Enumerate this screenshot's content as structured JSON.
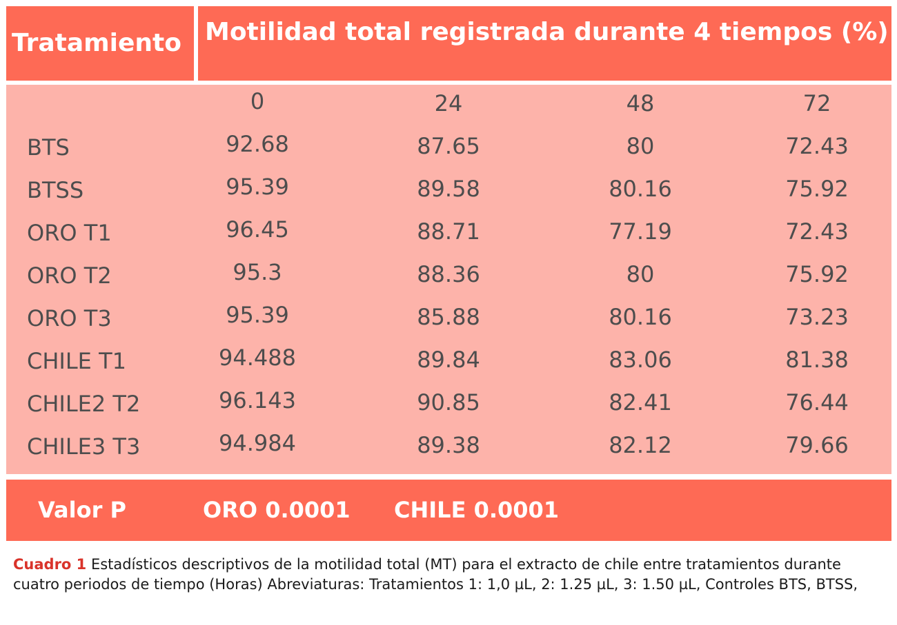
{
  "header": {
    "treatment": "Tratamiento",
    "title": "Motilidad total registrada durante 4 tiempos (%)"
  },
  "times": [
    "0",
    "24",
    "48",
    "72"
  ],
  "rows": [
    {
      "label": "BTS",
      "values": [
        "92.68",
        "87.65",
        "80",
        "72.43"
      ]
    },
    {
      "label": "BTSS",
      "values": [
        "95.39",
        "89.58",
        "80.16",
        "75.92"
      ]
    },
    {
      "label": "ORO T1",
      "values": [
        "96.45",
        "88.71",
        "77.19",
        "72.43"
      ]
    },
    {
      "label": "ORO T2",
      "values": [
        "95.3",
        "88.36",
        "80",
        "75.92"
      ]
    },
    {
      "label": "ORO T3",
      "values": [
        "95.39",
        "85.88",
        "80.16",
        "73.23"
      ]
    },
    {
      "label": "CHILE T1",
      "values": [
        "94.488",
        "89.84",
        "83.06",
        "81.38"
      ]
    },
    {
      "label": "CHILE2 T2",
      "values": [
        "96.143",
        "90.85",
        "82.41",
        "76.44"
      ]
    },
    {
      "label": "CHILE3 T3",
      "values": [
        "94.984",
        "89.38",
        "82.12",
        "79.66"
      ]
    }
  ],
  "footer": {
    "label": "Valor P",
    "oro": "ORO 0.0001",
    "chile": "CHILE 0.0001"
  },
  "caption": {
    "label": "Cuadro 1",
    "text": " Estadísticos descriptivos de la motilidad total (MT) para el extracto de chile entre tratamientos durante cuatro periodos de tiempo (Horas) Abreviaturas: Tratamientos 1: 1,0 µL, 2: 1.25 µL, 3: 1.50 µL, Controles BTS, BTSS,"
  },
  "colors": {
    "header_bg": "#fe6a55",
    "body_bg": "#fdb3aa",
    "caption_label": "#d9332a"
  }
}
